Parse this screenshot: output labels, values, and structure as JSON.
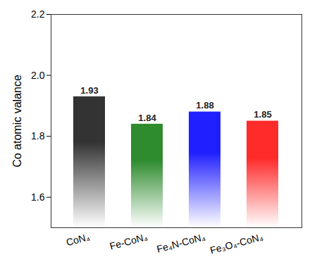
{
  "chart_data": {
    "type": "bar",
    "y_label": "Co atomic valance",
    "categories": [
      "CoN₄",
      "Fe-CoN₄",
      "Fe₄N-CoN₄",
      "Fe₃O₄-CoN₄"
    ],
    "values": [
      1.93,
      1.84,
      1.88,
      1.85
    ],
    "colors": [
      "#333333",
      "#2e8b2e",
      "#1f1fff",
      "#ff2a2a"
    ],
    "ylim": [
      1.5,
      2.2
    ],
    "yticks": [
      {
        "value": 1.6,
        "label": "1.6"
      },
      {
        "value": 1.8,
        "label": "1.8"
      },
      {
        "value": 2.0,
        "label": "2.0"
      },
      {
        "value": 2.2,
        "label": "2.2"
      }
    ],
    "data_labels": true,
    "grid": false
  }
}
